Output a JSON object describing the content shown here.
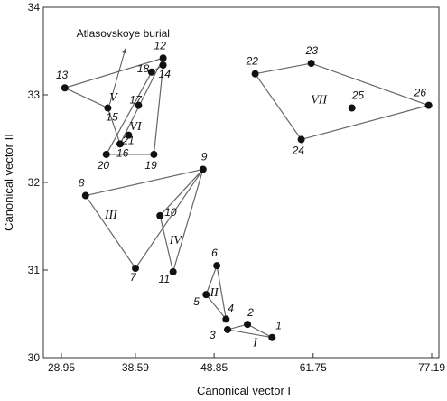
{
  "chart_data": {
    "type": "scatter",
    "xlabel": "Canonical vector I",
    "ylabel": "Canonical vector II",
    "xlim": [
      28.95,
      77.19
    ],
    "ylim": [
      30,
      34
    ],
    "xticks": [
      {
        "value": 28.95,
        "label": "28.95"
      },
      {
        "value": 38.59,
        "label": "38.59"
      },
      {
        "value": 48.85,
        "label": "48.85"
      },
      {
        "value": 61.75,
        "label": "61.75"
      },
      {
        "value": 77.19,
        "label": "77.19"
      }
    ],
    "yticks": [
      {
        "value": 30,
        "label": "30"
      },
      {
        "value": 31,
        "label": "31"
      },
      {
        "value": 32,
        "label": "32"
      },
      {
        "value": 33,
        "label": "33"
      },
      {
        "value": 34,
        "label": "34"
      }
    ],
    "grid": false,
    "points": [
      {
        "id": "1",
        "label": "1",
        "x": 56.4,
        "y": 30.23
      },
      {
        "id": "2",
        "label": "2",
        "x": 53.2,
        "y": 30.38
      },
      {
        "id": "3",
        "label": "3",
        "x": 50.6,
        "y": 30.32
      },
      {
        "id": "4",
        "label": "4",
        "x": 50.4,
        "y": 30.44
      },
      {
        "id": "5",
        "label": "5",
        "x": 47.8,
        "y": 30.72
      },
      {
        "id": "6",
        "label": "6",
        "x": 49.2,
        "y": 31.05
      },
      {
        "id": "7",
        "label": "7",
        "x": 38.6,
        "y": 31.02
      },
      {
        "id": "8",
        "label": "8",
        "x": 32.1,
        "y": 31.85
      },
      {
        "id": "9",
        "label": "9",
        "x": 47.4,
        "y": 32.15
      },
      {
        "id": "10",
        "label": "10",
        "x": 41.8,
        "y": 31.62
      },
      {
        "id": "11",
        "label": "11",
        "x": 43.5,
        "y": 30.98
      },
      {
        "id": "12",
        "label": "12",
        "x": 42.2,
        "y": 33.42
      },
      {
        "id": "13",
        "label": "13",
        "x": 29.4,
        "y": 33.08
      },
      {
        "id": "14",
        "label": "14",
        "x": 42.2,
        "y": 33.34
      },
      {
        "id": "15",
        "label": "15",
        "x": 35.0,
        "y": 32.85
      },
      {
        "id": "16",
        "label": "16",
        "x": 36.6,
        "y": 32.44
      },
      {
        "id": "17",
        "label": "17",
        "x": 39.0,
        "y": 32.88
      },
      {
        "id": "18",
        "label": "18",
        "x": 40.7,
        "y": 33.26
      },
      {
        "id": "19",
        "label": "19",
        "x": 41.0,
        "y": 32.32
      },
      {
        "id": "20",
        "label": "20",
        "x": 34.8,
        "y": 32.32
      },
      {
        "id": "21",
        "label": "21",
        "x": 37.7,
        "y": 32.54
      },
      {
        "id": "22",
        "label": "22",
        "x": 54.2,
        "y": 33.24
      },
      {
        "id": "23",
        "label": "23",
        "x": 61.5,
        "y": 33.36
      },
      {
        "id": "24",
        "label": "24",
        "x": 60.2,
        "y": 32.49
      },
      {
        "id": "25",
        "label": "25",
        "x": 66.8,
        "y": 32.85
      },
      {
        "id": "26",
        "label": "26",
        "x": 76.8,
        "y": 32.88
      }
    ],
    "groups": [
      {
        "label": "I",
        "hull": [
          "1",
          "2",
          "3"
        ],
        "label_at": {
          "x": 54.2,
          "y": 30.13
        }
      },
      {
        "label": "II",
        "hull": [
          "6",
          "4",
          "5"
        ],
        "label_at": {
          "x": 48.85,
          "y": 30.7
        }
      },
      {
        "label": "III",
        "hull": [
          "8",
          "9",
          "7"
        ],
        "label_at": {
          "x": 35.4,
          "y": 31.59
        }
      },
      {
        "label": "IV",
        "hull": [
          "9",
          "10",
          "11"
        ],
        "label_at": {
          "x": 43.8,
          "y": 31.3
        }
      },
      {
        "label": "V",
        "hull": [
          "13",
          "12",
          "16",
          "15"
        ],
        "label_at": {
          "x": 35.7,
          "y": 32.93
        }
      },
      {
        "label": "VI",
        "hull": [
          "18",
          "14",
          "19",
          "20"
        ],
        "label_at": {
          "x": 38.6,
          "y": 32.6
        }
      },
      {
        "label": "VII",
        "hull": [
          "22",
          "23",
          "26",
          "24"
        ],
        "label_at": {
          "x": 62.5,
          "y": 32.9
        }
      }
    ],
    "annotation": {
      "text": "Atlasovskoye burial",
      "points_to": "15",
      "text_at": {
        "x": 30.9,
        "y": 33.66
      },
      "arrow_tip": {
        "x": 37.3,
        "y": 33.53
      }
    }
  }
}
